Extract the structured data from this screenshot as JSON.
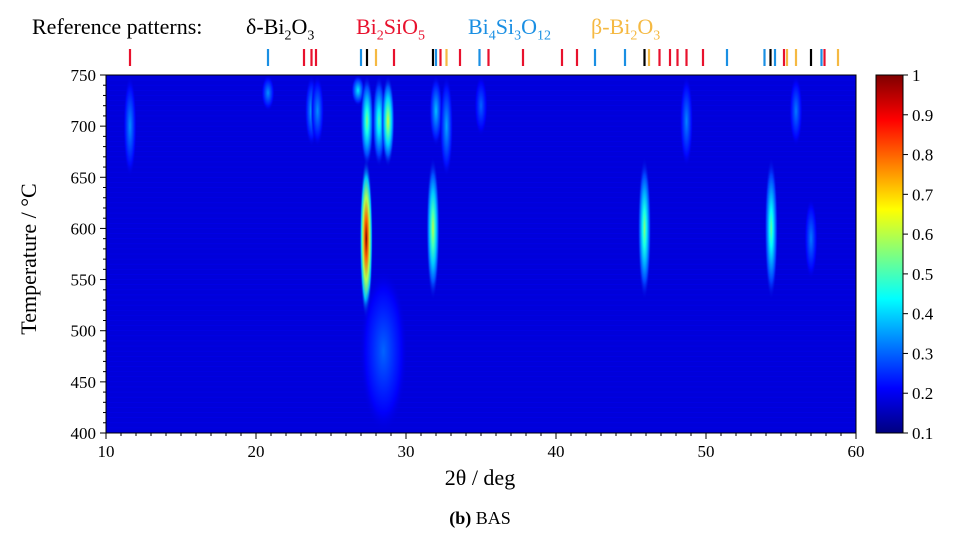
{
  "legend": {
    "title": "Reference patterns:",
    "phases": [
      {
        "formula_html": "δ-Bi<sub>2</sub>O<sub>3</sub>",
        "color": "#000000"
      },
      {
        "formula_html": "Bi<sub>2</sub>SiO<sub>5</sub>",
        "color": "#e8112d"
      },
      {
        "formula_html": "Bi<sub>4</sub>Si<sub>3</sub>O<sub>12</sub>",
        "color": "#1a8fe3"
      },
      {
        "formula_html": "β-Bi<sub>2</sub>O<sub>3</sub>",
        "color": "#f5b942"
      }
    ]
  },
  "caption": {
    "letter": "(b)",
    "text": " BAS"
  },
  "chart_data": {
    "type": "heatmap",
    "title": "",
    "xlabel": "2θ / deg",
    "ylabel": "Temperature / °C",
    "xlim": [
      10,
      60
    ],
    "ylim": [
      400,
      750
    ],
    "xticks": [
      10,
      20,
      30,
      40,
      50,
      60
    ],
    "yticks": [
      400,
      450,
      500,
      550,
      600,
      650,
      700,
      750
    ],
    "colorbar": {
      "min": 0.1,
      "max": 1,
      "ticks": [
        0.1,
        0.2,
        0.3,
        0.4,
        0.5,
        0.6,
        0.7,
        0.8,
        0.9,
        1
      ],
      "colormap": [
        "#00007f",
        "#0000ff",
        "#007fff",
        "#00ffff",
        "#7fff7f",
        "#ffff00",
        "#ff7f00",
        "#ff0000",
        "#7f0000"
      ]
    },
    "background_intensity": 0.18,
    "reference_markers": {
      "delta_Bi2O3": [
        27.4,
        31.8,
        45.9,
        54.3,
        57.0
      ],
      "Bi2SiO5": [
        11.6,
        23.2,
        23.7,
        24.0,
        29.2,
        32.3,
        33.6,
        35.5,
        37.8,
        40.4,
        41.4,
        46.9,
        47.6,
        48.1,
        48.7,
        49.8,
        55.2,
        57.9
      ],
      "Bi4Si3O12": [
        20.8,
        27.0,
        32.0,
        34.9,
        42.6,
        44.6,
        51.4,
        53.9,
        54.6,
        57.7
      ],
      "beta_Bi2O3": [
        28.0,
        32.7,
        46.2,
        55.4,
        56.0,
        58.8
      ]
    },
    "features": [
      {
        "name": "Bi2SiO5 peak",
        "x": 11.6,
        "t_min": 650,
        "t_max": 750,
        "peak": 0.34
      },
      {
        "name": "weak peak",
        "x": 20.8,
        "t_min": 715,
        "t_max": 750,
        "peak": 0.34
      },
      {
        "name": "Bi2SiO5 peak",
        "x": 23.7,
        "t_min": 680,
        "t_max": 750,
        "peak": 0.36
      },
      {
        "name": "Bi2SiO5 peak",
        "x": 24.1,
        "t_min": 680,
        "t_max": 750,
        "peak": 0.34
      },
      {
        "name": "Bi4Si3O12 peak",
        "x": 26.8,
        "t_min": 720,
        "t_max": 750,
        "peak": 0.42
      },
      {
        "name": "delta-Bi2O3 main peak",
        "x": 27.35,
        "t_min": 510,
        "t_max": 660,
        "peak": 1.0,
        "center_t": 590
      },
      {
        "name": "peak",
        "x": 27.4,
        "t_min": 660,
        "t_max": 750,
        "peak": 0.55
      },
      {
        "name": "beta-Bi2O3 peak",
        "x": 28.2,
        "t_min": 660,
        "t_max": 750,
        "peak": 0.5
      },
      {
        "name": "Bi2SiO5 peak",
        "x": 28.8,
        "t_min": 660,
        "t_max": 750,
        "peak": 0.62
      },
      {
        "name": "Bi4Si3O12 peak",
        "x": 32.0,
        "t_min": 680,
        "t_max": 750,
        "peak": 0.38
      },
      {
        "name": "delta-Bi2O3 peak",
        "x": 31.8,
        "t_min": 530,
        "t_max": 650,
        "peak": 0.6,
        "center_t": 600
      },
      {
        "name": "beta-Bi2O3 peak",
        "x": 32.7,
        "t_min": 650,
        "t_max": 750,
        "peak": 0.36
      },
      {
        "name": "Bi4Si3O12 peak",
        "x": 35.0,
        "t_min": 690,
        "t_max": 750,
        "peak": 0.3
      },
      {
        "name": "delta-Bi2O3 peak",
        "x": 45.9,
        "t_min": 530,
        "t_max": 650,
        "peak": 0.55,
        "center_t": 600
      },
      {
        "name": "Bi2SiO5 peak",
        "x": 48.7,
        "t_min": 660,
        "t_max": 750,
        "peak": 0.33
      },
      {
        "name": "delta-Bi2O3 peak",
        "x": 54.35,
        "t_min": 530,
        "t_max": 650,
        "peak": 0.52,
        "center_t": 600
      },
      {
        "name": "Bi4Si3O12 peak",
        "x": 56.0,
        "t_min": 680,
        "t_max": 750,
        "peak": 0.32
      },
      {
        "name": "delta-Bi2O3 peak",
        "x": 57.0,
        "t_min": 550,
        "t_max": 630,
        "peak": 0.32,
        "center_t": 590
      },
      {
        "name": "broad amorphous hump",
        "x": 28.5,
        "t_min": 400,
        "t_max": 560,
        "peak": 0.3,
        "width": 1.6
      }
    ]
  }
}
